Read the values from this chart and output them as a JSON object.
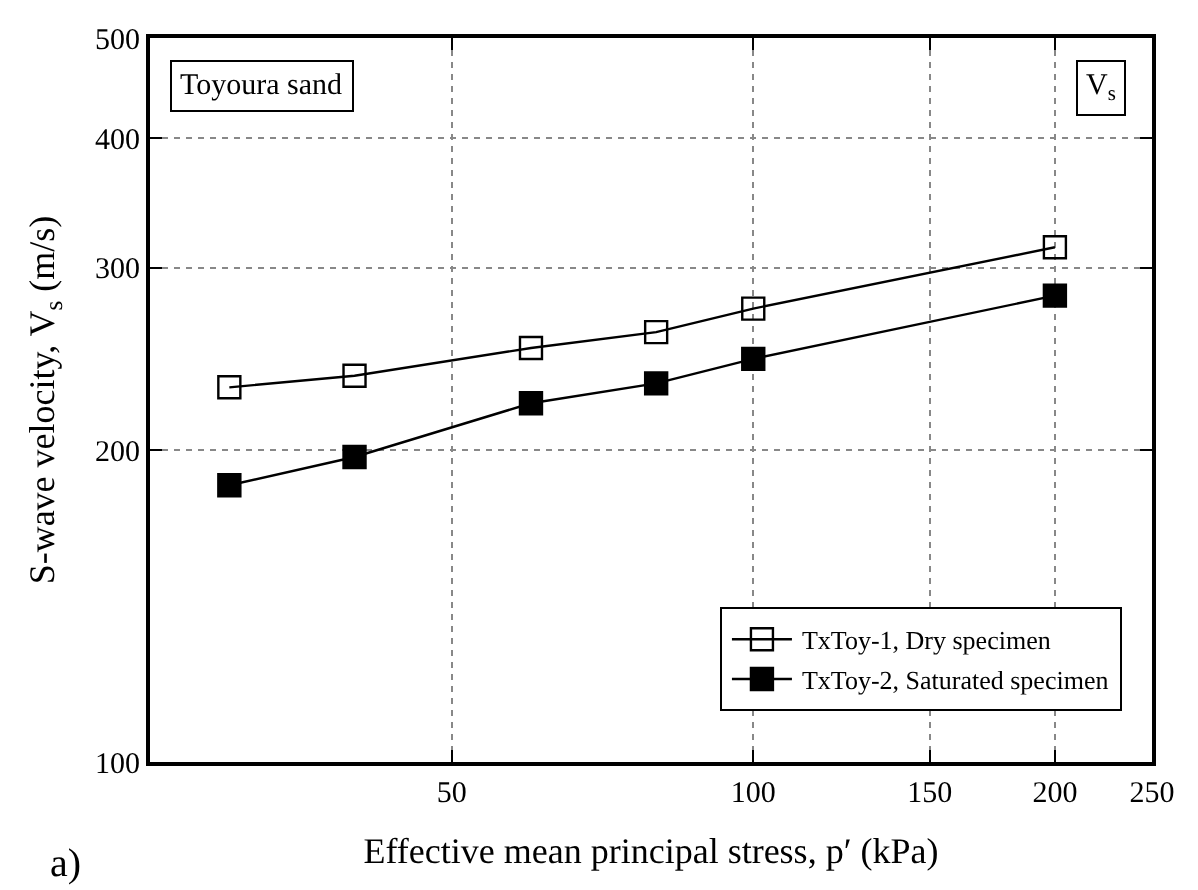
{
  "chart_data": {
    "type": "line",
    "xlabel": "Effective mean principal stress, p′ (kPa)",
    "ylabel": "S-wave velocity, V$_{s}$ (m/s)",
    "annotations": [
      "Toyoura sand",
      "V$_{s}$",
      "a)"
    ],
    "x": [
      30,
      40,
      60,
      80,
      100,
      200
    ],
    "series": [
      {
        "name": "TxToy-1, Dry specimen",
        "color": "#000000",
        "values": [
          230,
          236,
          251,
          260,
          274,
          314
        ]
      },
      {
        "name": "TxToy-2, Saturated specimen",
        "color": "#000000",
        "values": [
          185,
          197,
          222,
          232,
          245,
          282
        ]
      }
    ],
    "xlim": [
      25,
      250
    ],
    "ylim": [
      100,
      500
    ],
    "xticks": [
      50,
      100,
      150,
      200,
      250
    ],
    "yticks": [
      100,
      200,
      300,
      400,
      500
    ],
    "log": "xy",
    "grid": true,
    "legend": "bottom right",
    "marker": "square",
    "line_style": "solid"
  }
}
